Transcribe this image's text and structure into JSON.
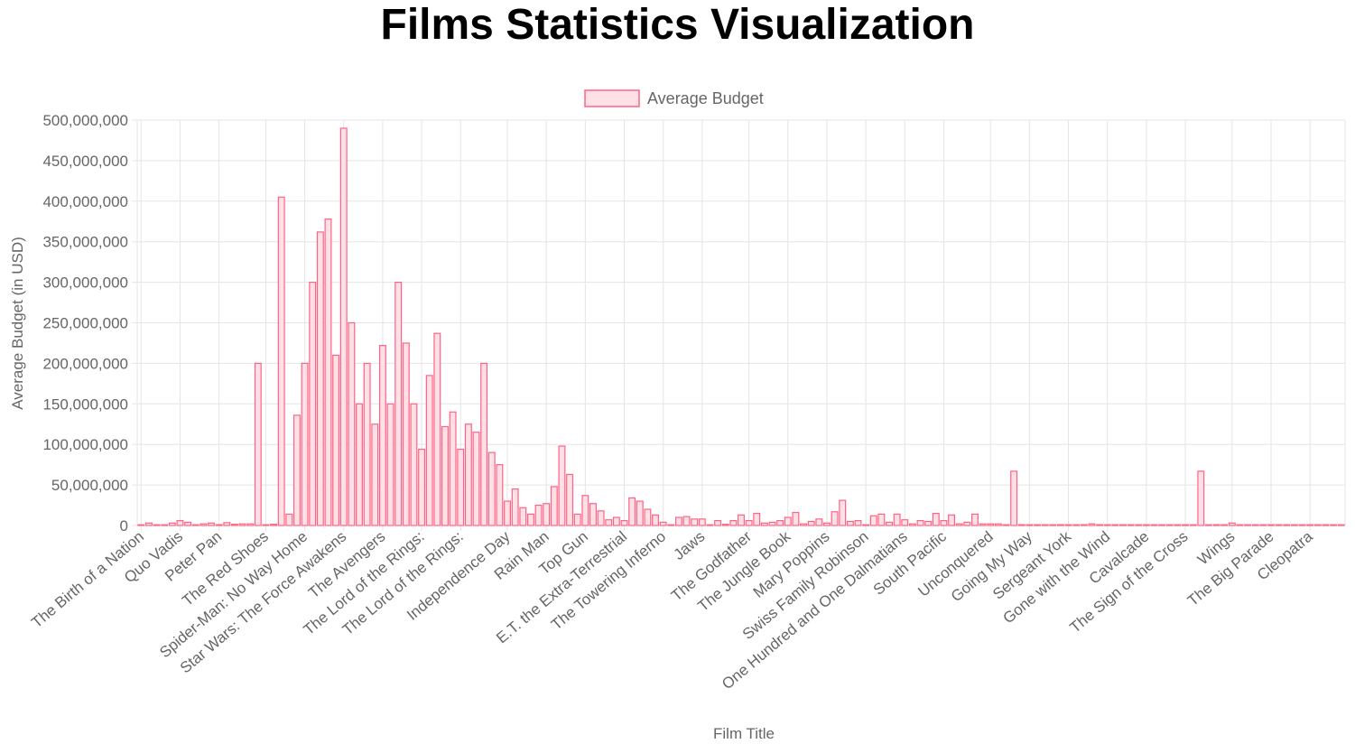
{
  "page": {
    "title": "Films Statistics Visualization"
  },
  "colors": {
    "bar_fill": "#ffe0e6",
    "bar_stroke": "#ff6384",
    "grid": "#e5e5e5",
    "text": "#666666"
  },
  "chart_data": {
    "type": "bar",
    "title": "",
    "legend": {
      "label": "Average Budget",
      "position": "top"
    },
    "xlabel": "Film Title",
    "ylabel": "Average Budget (in USD)",
    "ylim": [
      0,
      500000000
    ],
    "yticks": [
      "0",
      "50,000,000",
      "100,000,000",
      "150,000,000",
      "200,000,000",
      "250,000,000",
      "300,000,000",
      "350,000,000",
      "400,000,000",
      "450,000,000",
      "500,000,000"
    ],
    "xticks": [
      "The Birth of a Nation",
      "Quo Vadis",
      "Peter Pan",
      "The Red Shoes",
      "Spider-Man: No Way Home",
      "Star Wars: The Force Awakens",
      "The Avengers",
      "The Lord of the Rings:",
      "The Lord of the Rings:",
      "Independence Day",
      "Rain Man",
      "Top Gun",
      "E.T. the Extra-Terrestrial",
      "The Towering Inferno",
      "Jaws",
      "The Godfather",
      "The Jungle Book",
      "Mary Poppins",
      "Swiss Family Robinson",
      "One Hundred and One Dalmatians",
      "South Pacific",
      "Unconquered",
      "Going My Way",
      "Sergeant York",
      "Gone with the Wind",
      "Cavalcade",
      "The Sign of the Cross",
      "Wings",
      "The Big Parade",
      "Cleopatra"
    ],
    "values": [
      110000,
      3000000,
      0,
      0,
      3000000,
      6000000,
      4000000,
      0,
      2000000,
      3000000,
      1000000,
      3500000,
      1500000,
      2000000,
      2000000,
      200000000,
      200000,
      1500000,
      405000000,
      14000000,
      136000000,
      200000000,
      300000000,
      362000000,
      378000000,
      210000000,
      490000000,
      250000000,
      150000000,
      200000000,
      125000000,
      222000000,
      150000000,
      300000000,
      225000000,
      150000000,
      94000000,
      185000000,
      237000000,
      122000000,
      140000000,
      94000000,
      125000000,
      115000000,
      200000000,
      90000000,
      75000000,
      30000000,
      45000000,
      22000000,
      14000000,
      25000000,
      27000000,
      48000000,
      98000000,
      63000000,
      14000000,
      37000000,
      27000000,
      18000000,
      7000000,
      10000000,
      6000000,
      34000000,
      30000000,
      20000000,
      13000000,
      4000000,
      0,
      10000000,
      11000000,
      8000000,
      8000000,
      0,
      6000000,
      1500000,
      6000000,
      13000000,
      6000000,
      15000000,
      3000000,
      4000000,
      6000000,
      10000000,
      16000000,
      2000000,
      5000000,
      8000000,
      3000000,
      17000000,
      31000000,
      5000000,
      6000000,
      0,
      12000000,
      14000000,
      4000000,
      14000000,
      7000000,
      2000000,
      6000000,
      5000000,
      15000000,
      6000000,
      13000000,
      2000000,
      4000000,
      14000000,
      2000000,
      2000000,
      2000000,
      0,
      67000000,
      1000000,
      0,
      0,
      0,
      0,
      1000000,
      0,
      0,
      1000000,
      2000000,
      1000000,
      0,
      0,
      500000,
      0,
      500000,
      300000,
      0,
      300000,
      200000,
      0,
      200000,
      0,
      67000000,
      0,
      1000000,
      0,
      3000000,
      0,
      0,
      500000,
      0,
      0,
      0,
      0,
      200000,
      300000,
      200000,
      200000,
      0,
      0,
      0
    ]
  }
}
